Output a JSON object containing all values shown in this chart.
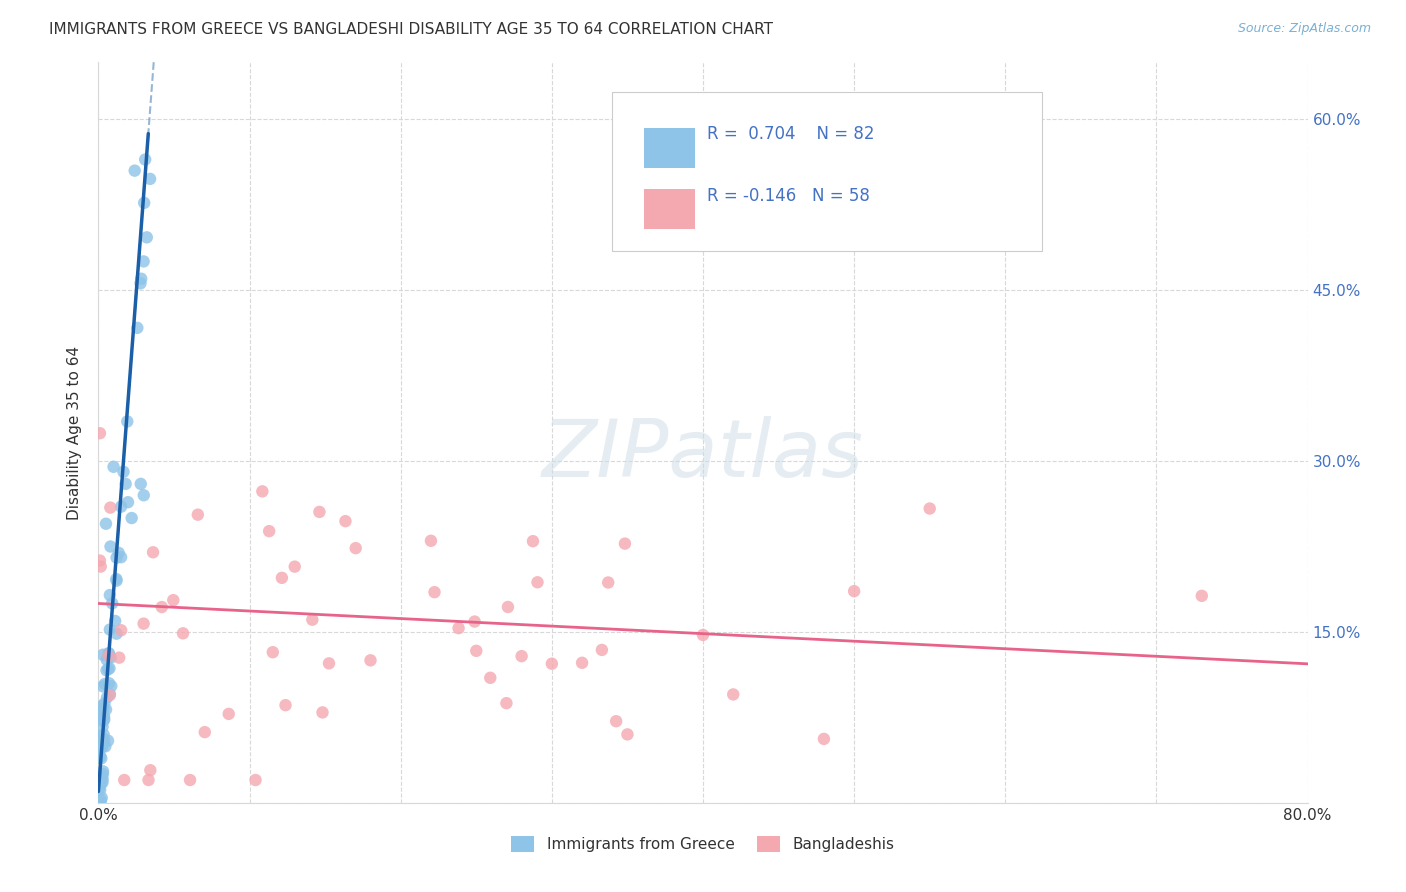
{
  "title": "IMMIGRANTS FROM GREECE VS BANGLADESHI DISABILITY AGE 35 TO 64 CORRELATION CHART",
  "source": "Source: ZipAtlas.com",
  "ylabel": "Disability Age 35 to 64",
  "legend_label1": "Immigrants from Greece",
  "legend_label2": "Bangladeshis",
  "r1": 0.704,
  "n1": 82,
  "r2": -0.146,
  "n2": 58,
  "color1": "#8ec4e8",
  "color2": "#f4a8b0",
  "line_color1": "#1a5fa8",
  "line_color2": "#e8638a",
  "xlim": [
    0.0,
    0.8
  ],
  "ylim": [
    0.0,
    0.65
  ],
  "xticks": [
    0.0,
    0.1,
    0.2,
    0.3,
    0.4,
    0.5,
    0.6,
    0.7,
    0.8
  ],
  "yticks": [
    0.0,
    0.15,
    0.3,
    0.45,
    0.6
  ],
  "background_color": "#ffffff",
  "grid_color": "#d8d8d8",
  "text_color_blue": "#4472c4",
  "text_color_dark": "#333333"
}
